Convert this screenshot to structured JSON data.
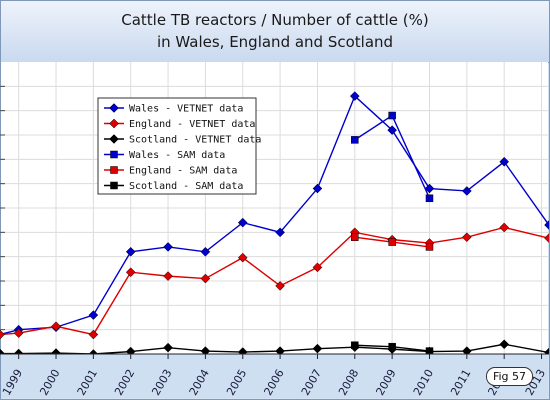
{
  "title": {
    "line1": "Cattle TB reactors / Number of cattle (%)",
    "line2": "in Wales, England and Scotland"
  },
  "figure_label": "Fig 57",
  "chart_data": {
    "type": "line",
    "categories": [
      "1999",
      "2000",
      "2001",
      "2002",
      "2003",
      "2004",
      "2005",
      "2006",
      "2007",
      "2008",
      "2009",
      "2010",
      "2011",
      "2012",
      "2013"
    ],
    "x_start": 1998.5,
    "x_end": 2013.2,
    "y_range": [
      0,
      0.6
    ],
    "y_ticks": [
      0,
      0.05,
      0.1,
      0.15,
      0.2,
      0.25,
      0.3,
      0.35,
      0.4,
      0.45,
      0.5,
      0.55
    ],
    "grid": true,
    "legend_position": "top-left",
    "series": [
      {
        "name": "Wales - VETNET data",
        "color": "#0000cc",
        "marker": "diamond",
        "x": [
          1998.5,
          1999,
          2000,
          2001,
          2002,
          2003,
          2004,
          2005,
          2006,
          2007,
          2008,
          2009,
          2010,
          2011,
          2012,
          2013.2
        ],
        "y": [
          0.04,
          0.05,
          0.055,
          0.08,
          0.21,
          0.22,
          0.21,
          0.27,
          0.25,
          0.34,
          0.53,
          0.46,
          0.34,
          0.335,
          0.395,
          0.265
        ]
      },
      {
        "name": "England - VETNET data",
        "color": "#dd0000",
        "marker": "diamond",
        "x": [
          1998.5,
          1999,
          2000,
          2001,
          2002,
          2003,
          2004,
          2005,
          2006,
          2007,
          2008,
          2009,
          2010,
          2011,
          2012,
          2013.2
        ],
        "y": [
          0.04,
          0.043,
          0.057,
          0.04,
          0.168,
          0.16,
          0.155,
          0.198,
          0.14,
          0.178,
          0.25,
          0.235,
          0.228,
          0.24,
          0.26,
          0.238
        ]
      },
      {
        "name": "Scotland - VETNET data",
        "color": "#000000",
        "marker": "diamond",
        "x": [
          1998.5,
          1999,
          2000,
          2001,
          2002,
          2003,
          2004,
          2005,
          2006,
          2007,
          2008,
          2009,
          2010,
          2011,
          2012,
          2013.2
        ],
        "y": [
          0.001,
          0.001,
          0.002,
          0,
          0.005,
          0.013,
          0.006,
          0.004,
          0.006,
          0.011,
          0.014,
          0.01,
          0.005,
          0.006,
          0.02,
          0.003
        ]
      },
      {
        "name": "Wales - SAM data",
        "color": "#0000cc",
        "marker": "square",
        "x": [
          2008,
          2009,
          2010
        ],
        "y": [
          0.44,
          0.49,
          0.32
        ]
      },
      {
        "name": "England - SAM data",
        "color": "#dd0000",
        "marker": "square",
        "x": [
          2008,
          2009,
          2010
        ],
        "y": [
          0.24,
          0.23,
          0.22
        ]
      },
      {
        "name": "Scotland - SAM data",
        "color": "#000000",
        "marker": "square",
        "x": [
          2008,
          2009,
          2010
        ],
        "y": [
          0.018,
          0.015,
          0.006
        ]
      }
    ]
  }
}
